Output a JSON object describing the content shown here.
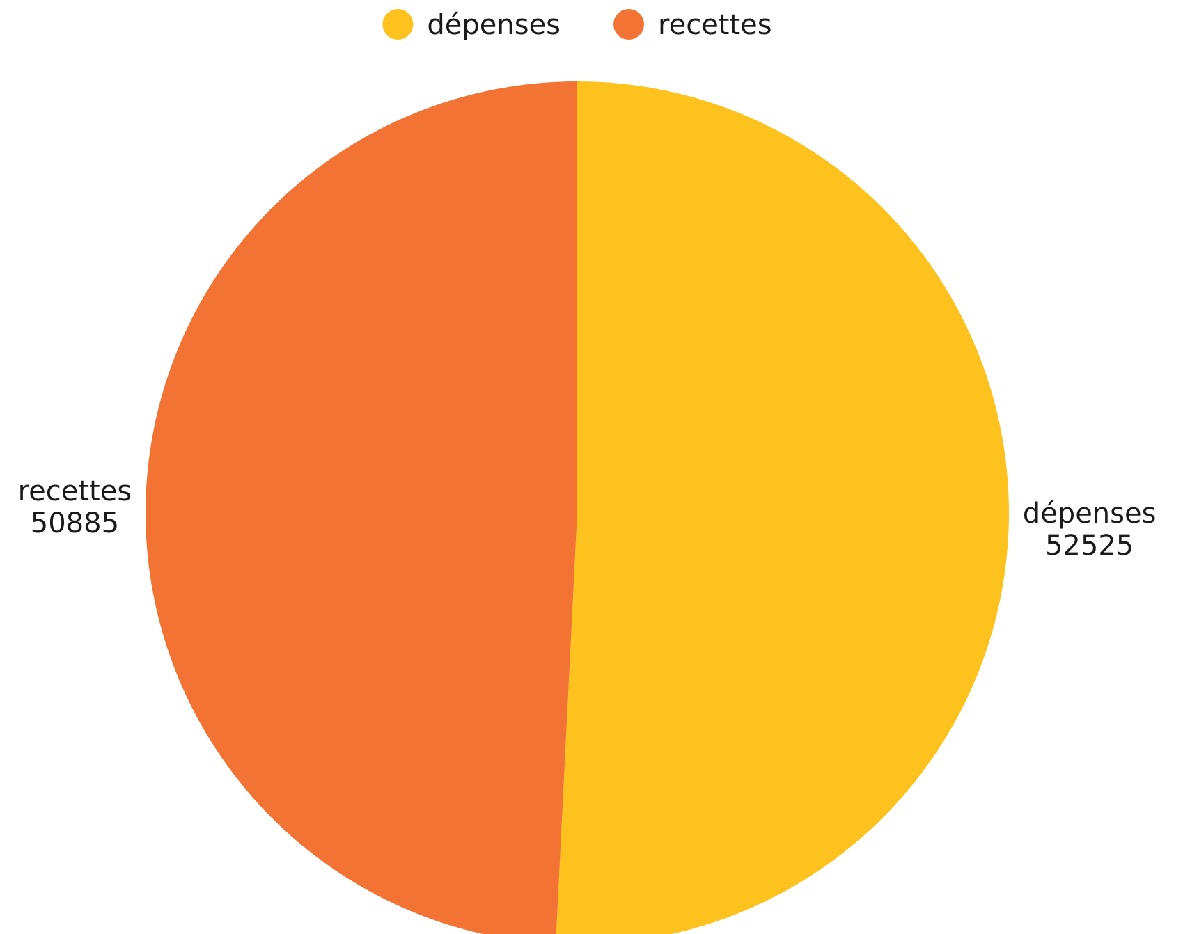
{
  "chart_data": {
    "type": "pie",
    "title": "",
    "legend_position": "top-center",
    "slices": [
      {
        "label": "dépenses",
        "value": 52525,
        "value_label": "52525",
        "color": "#FEC21E"
      },
      {
        "label": "recettes",
        "value": 50885,
        "value_label": "50885",
        "color": "#F37334"
      }
    ]
  }
}
